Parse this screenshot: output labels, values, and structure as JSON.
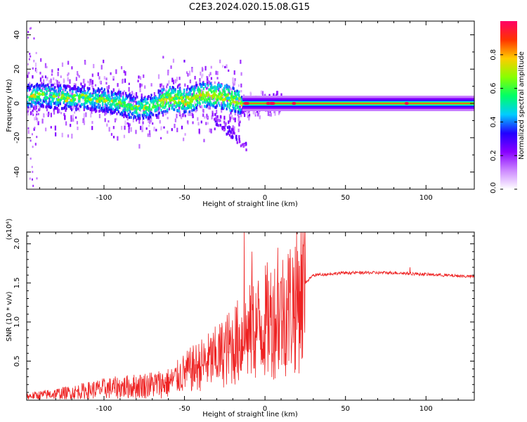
{
  "title": "C2E3.2024.020.15.08.G15",
  "chart_data": [
    {
      "type": "heatmap",
      "name": "spectrogram",
      "xlabel": "Height of straight line (km)",
      "ylabel": "Frequency (Hz)",
      "xlim": [
        -148,
        130
      ],
      "ylim": [
        -50,
        48
      ],
      "xticks": [
        -100,
        -50,
        0,
        50,
        100
      ],
      "yticks": [
        -40,
        -20,
        0,
        20,
        40
      ],
      "ridge": [
        [
          -145,
          4
        ],
        [
          -138,
          5
        ],
        [
          -130,
          4
        ],
        [
          -120,
          3
        ],
        [
          -110,
          3
        ],
        [
          -100,
          2
        ],
        [
          -90,
          0
        ],
        [
          -80,
          -3
        ],
        [
          -72,
          -2
        ],
        [
          -65,
          1
        ],
        [
          -60,
          3
        ],
        [
          -55,
          2
        ],
        [
          -50,
          1
        ],
        [
          -45,
          3
        ],
        [
          -40,
          5
        ],
        [
          -35,
          5
        ],
        [
          -30,
          4
        ],
        [
          -25,
          4
        ],
        [
          -20,
          2
        ],
        [
          -15,
          1
        ],
        [
          -10,
          0
        ],
        [
          0,
          0
        ],
        [
          20,
          0
        ],
        [
          60,
          0
        ],
        [
          130,
          0
        ]
      ],
      "colorbar": {
        "label": "Normalized spectral amplitude",
        "range": [
          0,
          1
        ],
        "ticks": [
          "0.0",
          "0.2",
          "0.4",
          "0.6",
          "0.8"
        ],
        "colors": [
          "#ffffff",
          "#cc88ff",
          "#8800ff",
          "#2200ff",
          "#00ccff",
          "#00ff66",
          "#88ff00",
          "#ffcc00",
          "#ff3300",
          "#ff0066"
        ]
      }
    },
    {
      "type": "line",
      "name": "snr",
      "xlabel": "Height of straight line (km)",
      "ylabel": "SNR (10 * v/v)",
      "exponent_label": "(x10⁴)",
      "xlim": [
        -148,
        130
      ],
      "ylim": [
        0,
        2.15
      ],
      "xticks": [
        -100,
        -50,
        0,
        50,
        100
      ],
      "yticks": [
        0.5,
        1.0,
        1.5,
        2.0
      ],
      "ytick_labels": [
        "0.5",
        "1.0",
        "1.5",
        "2.0"
      ],
      "color": "#ee2222",
      "trend": [
        [
          -148,
          0.05
        ],
        [
          -120,
          0.1
        ],
        [
          -100,
          0.15
        ],
        [
          -80,
          0.18
        ],
        [
          -60,
          0.22
        ],
        [
          -50,
          0.35
        ],
        [
          -40,
          0.45
        ],
        [
          -30,
          0.55
        ],
        [
          -20,
          0.7
        ],
        [
          -10,
          0.85
        ],
        [
          0,
          1.0
        ],
        [
          10,
          1.1
        ],
        [
          20,
          1.3
        ],
        [
          25,
          1.5
        ],
        [
          30,
          1.6
        ],
        [
          50,
          1.63
        ],
        [
          80,
          1.63
        ],
        [
          100,
          1.61
        ],
        [
          130,
          1.58
        ]
      ],
      "peaks": [
        [
          -13,
          2.15
        ],
        [
          -8,
          1.9
        ],
        [
          8,
          1.95
        ],
        [
          90,
          1.7
        ]
      ]
    }
  ]
}
